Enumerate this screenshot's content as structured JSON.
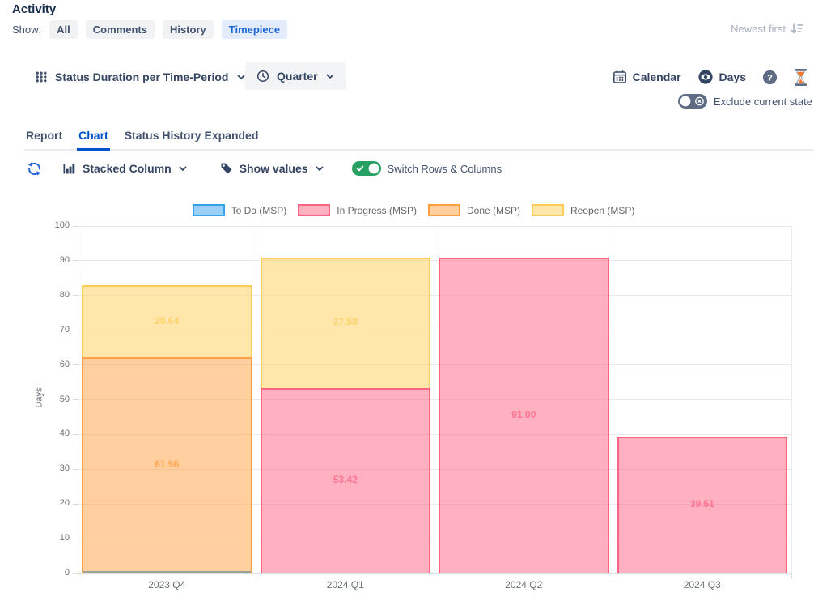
{
  "header": {
    "title": "Activity",
    "show_label": "Show:",
    "filters": [
      {
        "label": "All",
        "active": false
      },
      {
        "label": "Comments",
        "active": false
      },
      {
        "label": "History",
        "active": false
      },
      {
        "label": "Timepiece",
        "active": true
      }
    ],
    "sort_label": "Newest first",
    "sort_icon": "sort-descending-icon"
  },
  "toolbar": {
    "grid_icon": "grid-icon",
    "report_selector": "Status Duration per Time-Period",
    "period_icon": "clock-icon",
    "period_selector": "Quarter",
    "calendar_icon": "calendar-icon",
    "calendar_label": "Calendar",
    "unit_icon": "eye-icon",
    "unit_label": "Days",
    "help_icon": "help-icon",
    "app_icon": "hourglass-icon"
  },
  "options": {
    "exclude_current_state": {
      "label": "Exclude current state",
      "enabled": false
    }
  },
  "tabs": [
    {
      "label": "Report",
      "active": false
    },
    {
      "label": "Chart",
      "active": true
    },
    {
      "label": "Status History Expanded",
      "active": false
    }
  ],
  "chart_toolbar": {
    "refresh_icon": "refresh-icon",
    "chart_type_icon": "stacked-column-icon",
    "chart_type": "Stacked Column",
    "values_icon": "tag-icon",
    "values_mode": "Show values",
    "switch_rows_columns": {
      "label": "Switch Rows & Columns",
      "enabled": true
    }
  },
  "colors": {
    "accent_blue": "#0052CC",
    "toggle_on_green": "#27A163",
    "toggle_off_slate": "#5E6C84",
    "active_filter_bg": "#E2ECFC",
    "gridline": "#E8E8E8"
  },
  "chart_data": {
    "type": "bar",
    "stacked": true,
    "title": "",
    "xlabel": "",
    "ylabel": "Days",
    "ylim": [
      0,
      100
    ],
    "ytick_step": 10,
    "legend_position": "top",
    "values_shown": true,
    "categories": [
      "2023 Q4",
      "2024 Q1",
      "2024 Q2",
      "2024 Q3"
    ],
    "series": [
      {
        "name": "To Do (MSP)",
        "border": "#36A2EB",
        "fill": "rgba(54,162,235,0.5)",
        "values": [
          0.3,
          0,
          0,
          0
        ]
      },
      {
        "name": "In Progress (MSP)",
        "border": "#FF6384",
        "fill": "rgba(255,99,132,0.5)",
        "values": [
          0,
          53.42,
          91.0,
          39.51
        ]
      },
      {
        "name": "Done (MSP)",
        "border": "#FF9F40",
        "fill": "rgba(255,159,64,0.5)",
        "values": [
          61.96,
          0,
          0,
          0
        ]
      },
      {
        "name": "Reopen (MSP)",
        "border": "#FFCD56",
        "fill": "rgba(255,205,86,0.5)",
        "values": [
          20.64,
          37.58,
          0,
          0
        ]
      }
    ]
  }
}
